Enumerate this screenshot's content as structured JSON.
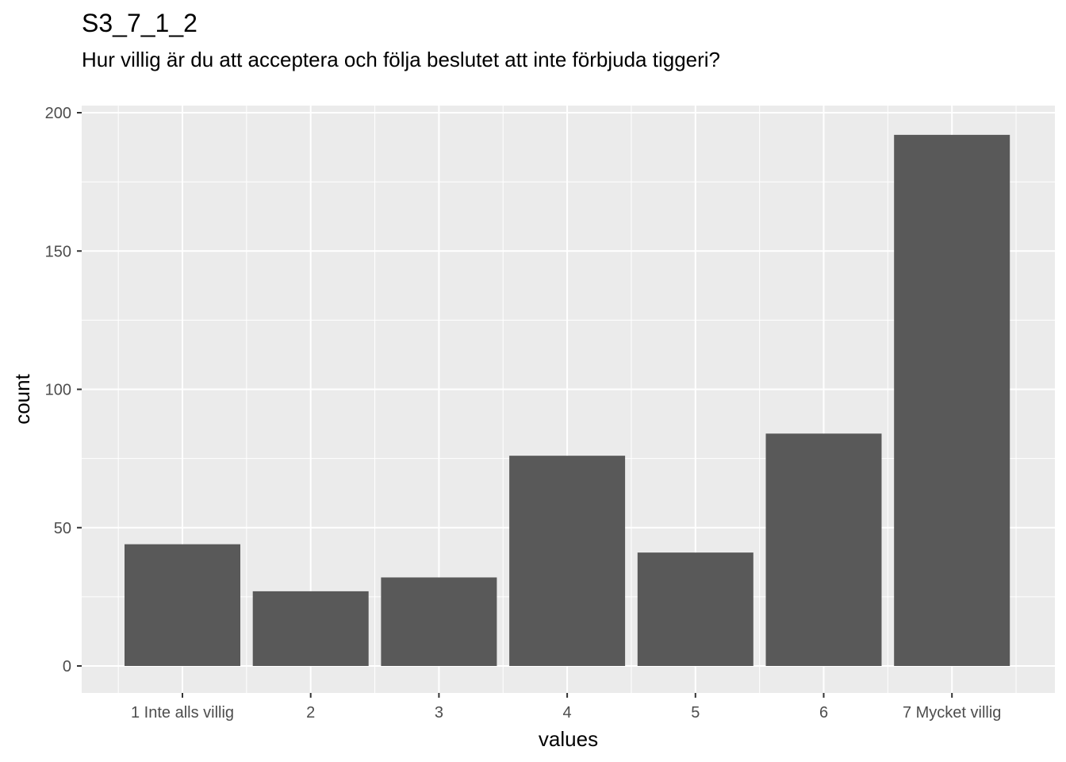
{
  "title": "S3_7_1_2",
  "subtitle": "Hur villig är du att acceptera och följa beslutet att inte förbjuda tiggeri?",
  "chart_data": {
    "type": "bar",
    "categories": [
      "1 Inte alls villig",
      "2",
      "3",
      "4",
      "5",
      "6",
      "7 Mycket villig"
    ],
    "values": [
      44,
      27,
      32,
      76,
      41,
      84,
      192
    ],
    "xlabel": "values",
    "ylabel": "count",
    "ylim": [
      0,
      200
    ],
    "yticks": [
      0,
      50,
      100,
      150,
      200
    ],
    "bar_color": "#595959",
    "panel_color": "#ebebeb",
    "grid": true
  }
}
